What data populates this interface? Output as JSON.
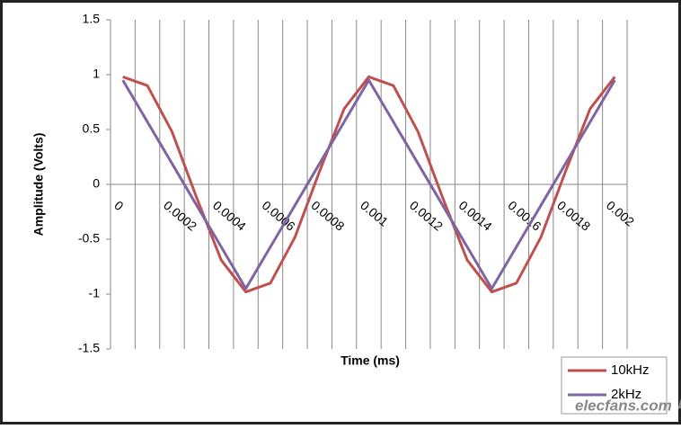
{
  "chart_data": {
    "type": "line",
    "x_label": "Time (ms)",
    "y_label": "Amplitude (Volts)",
    "categories": [
      "0",
      null,
      "0.0002",
      null,
      "0.0004",
      null,
      "0.0006",
      null,
      "0.0008",
      null,
      "0.001",
      null,
      "0.0012",
      null,
      "0.0014",
      null,
      "0.0016",
      null,
      "0.0018",
      null,
      "0.002"
    ],
    "series": [
      {
        "name": "10kHz",
        "color": "#c0504d",
        "values": [
          0.98,
          0.9,
          0.48,
          -0.12,
          -0.69,
          -0.98,
          -0.9,
          -0.48,
          0.12,
          0.69,
          0.98,
          0.9,
          0.48,
          -0.12,
          -0.69,
          -0.98,
          -0.9,
          -0.48,
          0.12,
          0.69,
          0.98
        ]
      },
      {
        "name": "2kHz",
        "color": "#8064a2",
        "values": [
          0.95,
          0.57,
          0.19,
          -0.19,
          -0.57,
          -0.95,
          -0.57,
          -0.19,
          0.19,
          0.57,
          0.95,
          0.57,
          0.19,
          -0.19,
          -0.57,
          -0.95,
          -0.57,
          -0.19,
          0.19,
          0.57,
          0.95
        ]
      }
    ],
    "ylim": [
      -1.5,
      1.5
    ],
    "yticks": [
      1.5,
      1,
      0.5,
      0,
      -0.5,
      -1,
      -1.5
    ],
    "x_grid": true,
    "legend": "bottom-right",
    "watermark": "elecfans.com 电子发烧友"
  }
}
